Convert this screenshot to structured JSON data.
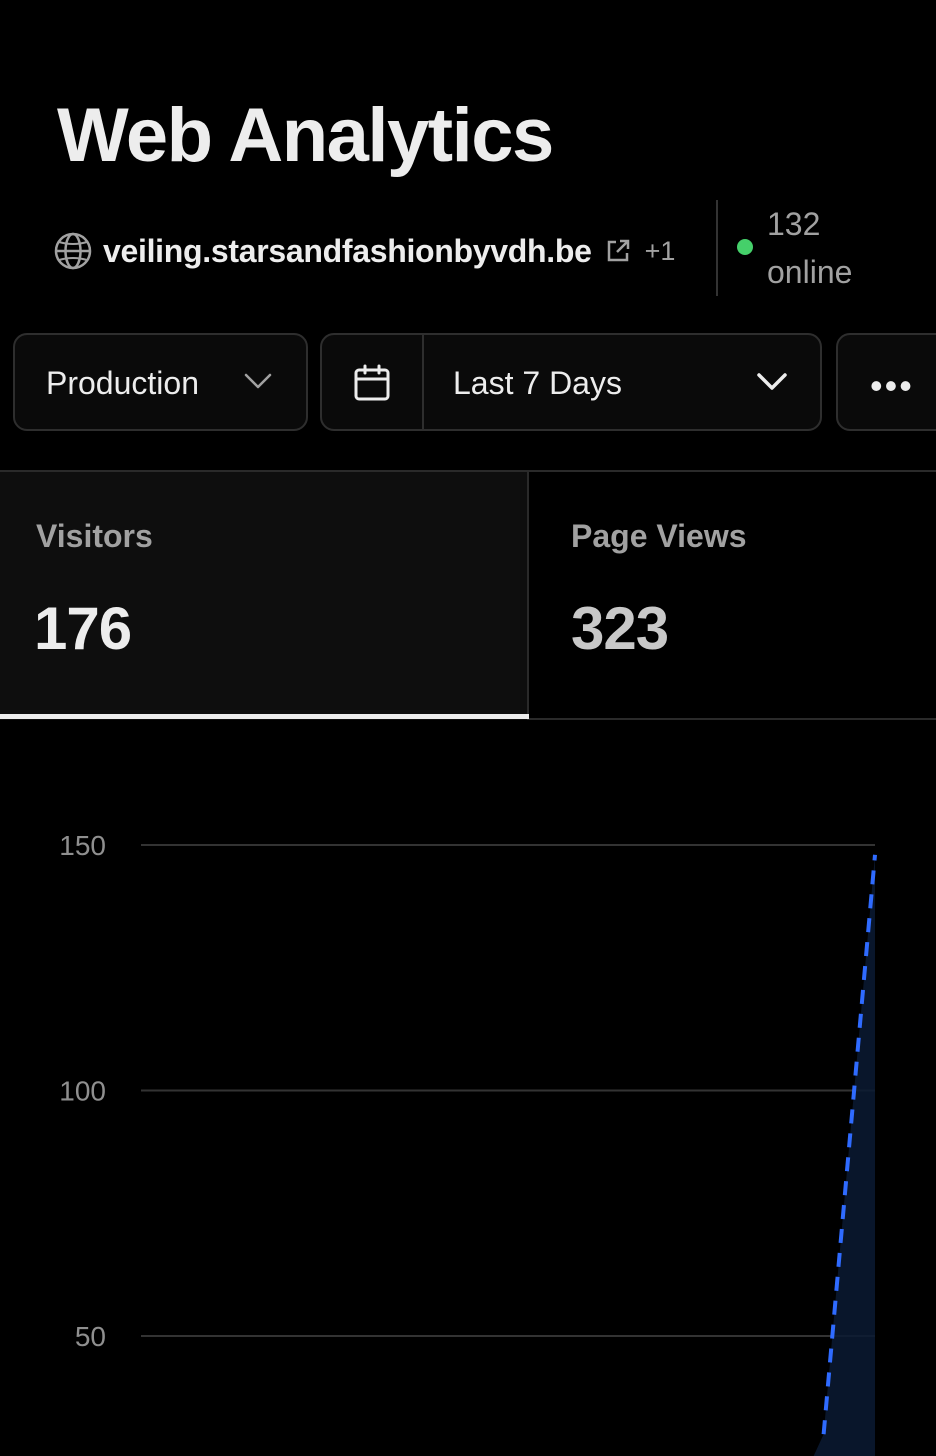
{
  "header": {
    "title": "Web Analytics",
    "domain": "veiling.starsandfashionbyvdh.be",
    "extra_domains": "+1",
    "online_count": "132",
    "online_label": "online",
    "online_color": "#45d06a"
  },
  "toolbar": {
    "environment": "Production",
    "date_range": "Last 7 Days",
    "more_label": "•••"
  },
  "stats": {
    "visitors": {
      "label": "Visitors",
      "value": "176"
    },
    "page_views": {
      "label": "Page Views",
      "value": "323"
    },
    "active_tab": "visitors"
  },
  "icons": [
    "globe-icon",
    "external-link-icon",
    "chevron-down-icon",
    "calendar-icon",
    "more-icon"
  ],
  "chart_data": {
    "type": "area",
    "y_ticks": [
      "150",
      "100",
      "50"
    ],
    "ylim": [
      0,
      150
    ],
    "grid": true,
    "series": [
      {
        "points": [
          [
            0.0,
            0
          ],
          [
            0.87,
            0
          ],
          [
            0.93,
            30
          ],
          [
            1.0,
            148
          ]
        ],
        "color": "#2f6bff",
        "style": "dashed"
      }
    ]
  }
}
